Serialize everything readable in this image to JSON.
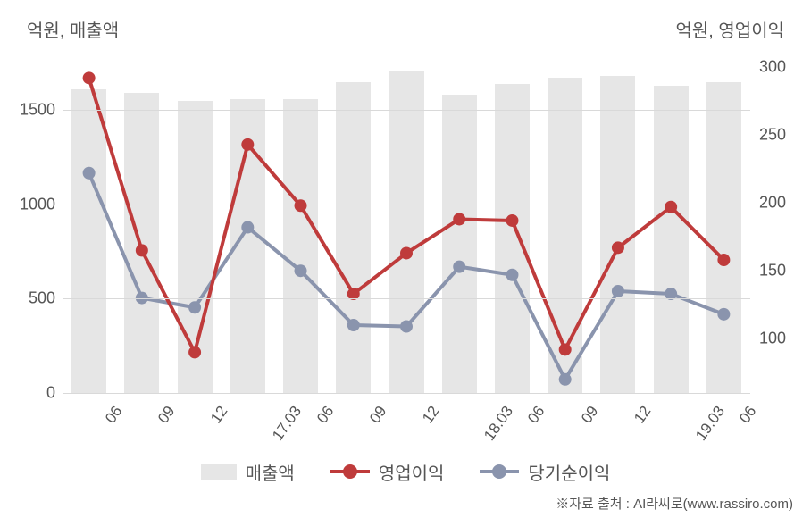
{
  "chart": {
    "type": "bar+line-dual-axis",
    "background_color": "#ffffff",
    "grid_color": "#d9d9d9",
    "text_color": "#555555",
    "title_fontsize": 20,
    "label_fontsize": 18,
    "xlabel_fontsize": 17,
    "legend_fontsize": 20,
    "x_labels": [
      "06",
      "09",
      "12",
      "17.03",
      "06",
      "09",
      "12",
      "18.03",
      "06",
      "09",
      "12",
      "19.03",
      "06"
    ],
    "x_label_rotation_deg": -55,
    "y_left": {
      "title": "억원, 매출액",
      "min": 0,
      "max": 1800,
      "ticks": [
        0,
        500,
        1000,
        1500
      ]
    },
    "y_right": {
      "title": "억원, 영업이익",
      "min": 60,
      "max": 310,
      "ticks": [
        100,
        150,
        200,
        250,
        300
      ]
    },
    "series": {
      "bars": {
        "name_ko": "매출액",
        "color": "#e6e6e6",
        "bar_width_ratio": 0.66,
        "values": [
          1610,
          1590,
          1550,
          1560,
          1560,
          1650,
          1710,
          1580,
          1640,
          1670,
          1680,
          1630,
          1650
        ]
      },
      "line1": {
        "name_ko": "영업이익",
        "color": "#bf3b3b",
        "line_width": 4,
        "marker_radius": 7,
        "values": [
          292,
          165,
          90,
          243,
          198,
          133,
          163,
          188,
          187,
          92,
          167,
          197,
          158
        ]
      },
      "line2": {
        "name_ko": "당기순이익",
        "color": "#8a94ad",
        "line_width": 4,
        "marker_radius": 7,
        "values": [
          222,
          130,
          123,
          182,
          150,
          110,
          109,
          153,
          147,
          70,
          135,
          133,
          118
        ]
      }
    },
    "legend_items": [
      "매출액",
      "영업이익",
      "당기순이익"
    ],
    "credit": "※자료 출처 : AI라씨로(www.rassiro.com)"
  }
}
